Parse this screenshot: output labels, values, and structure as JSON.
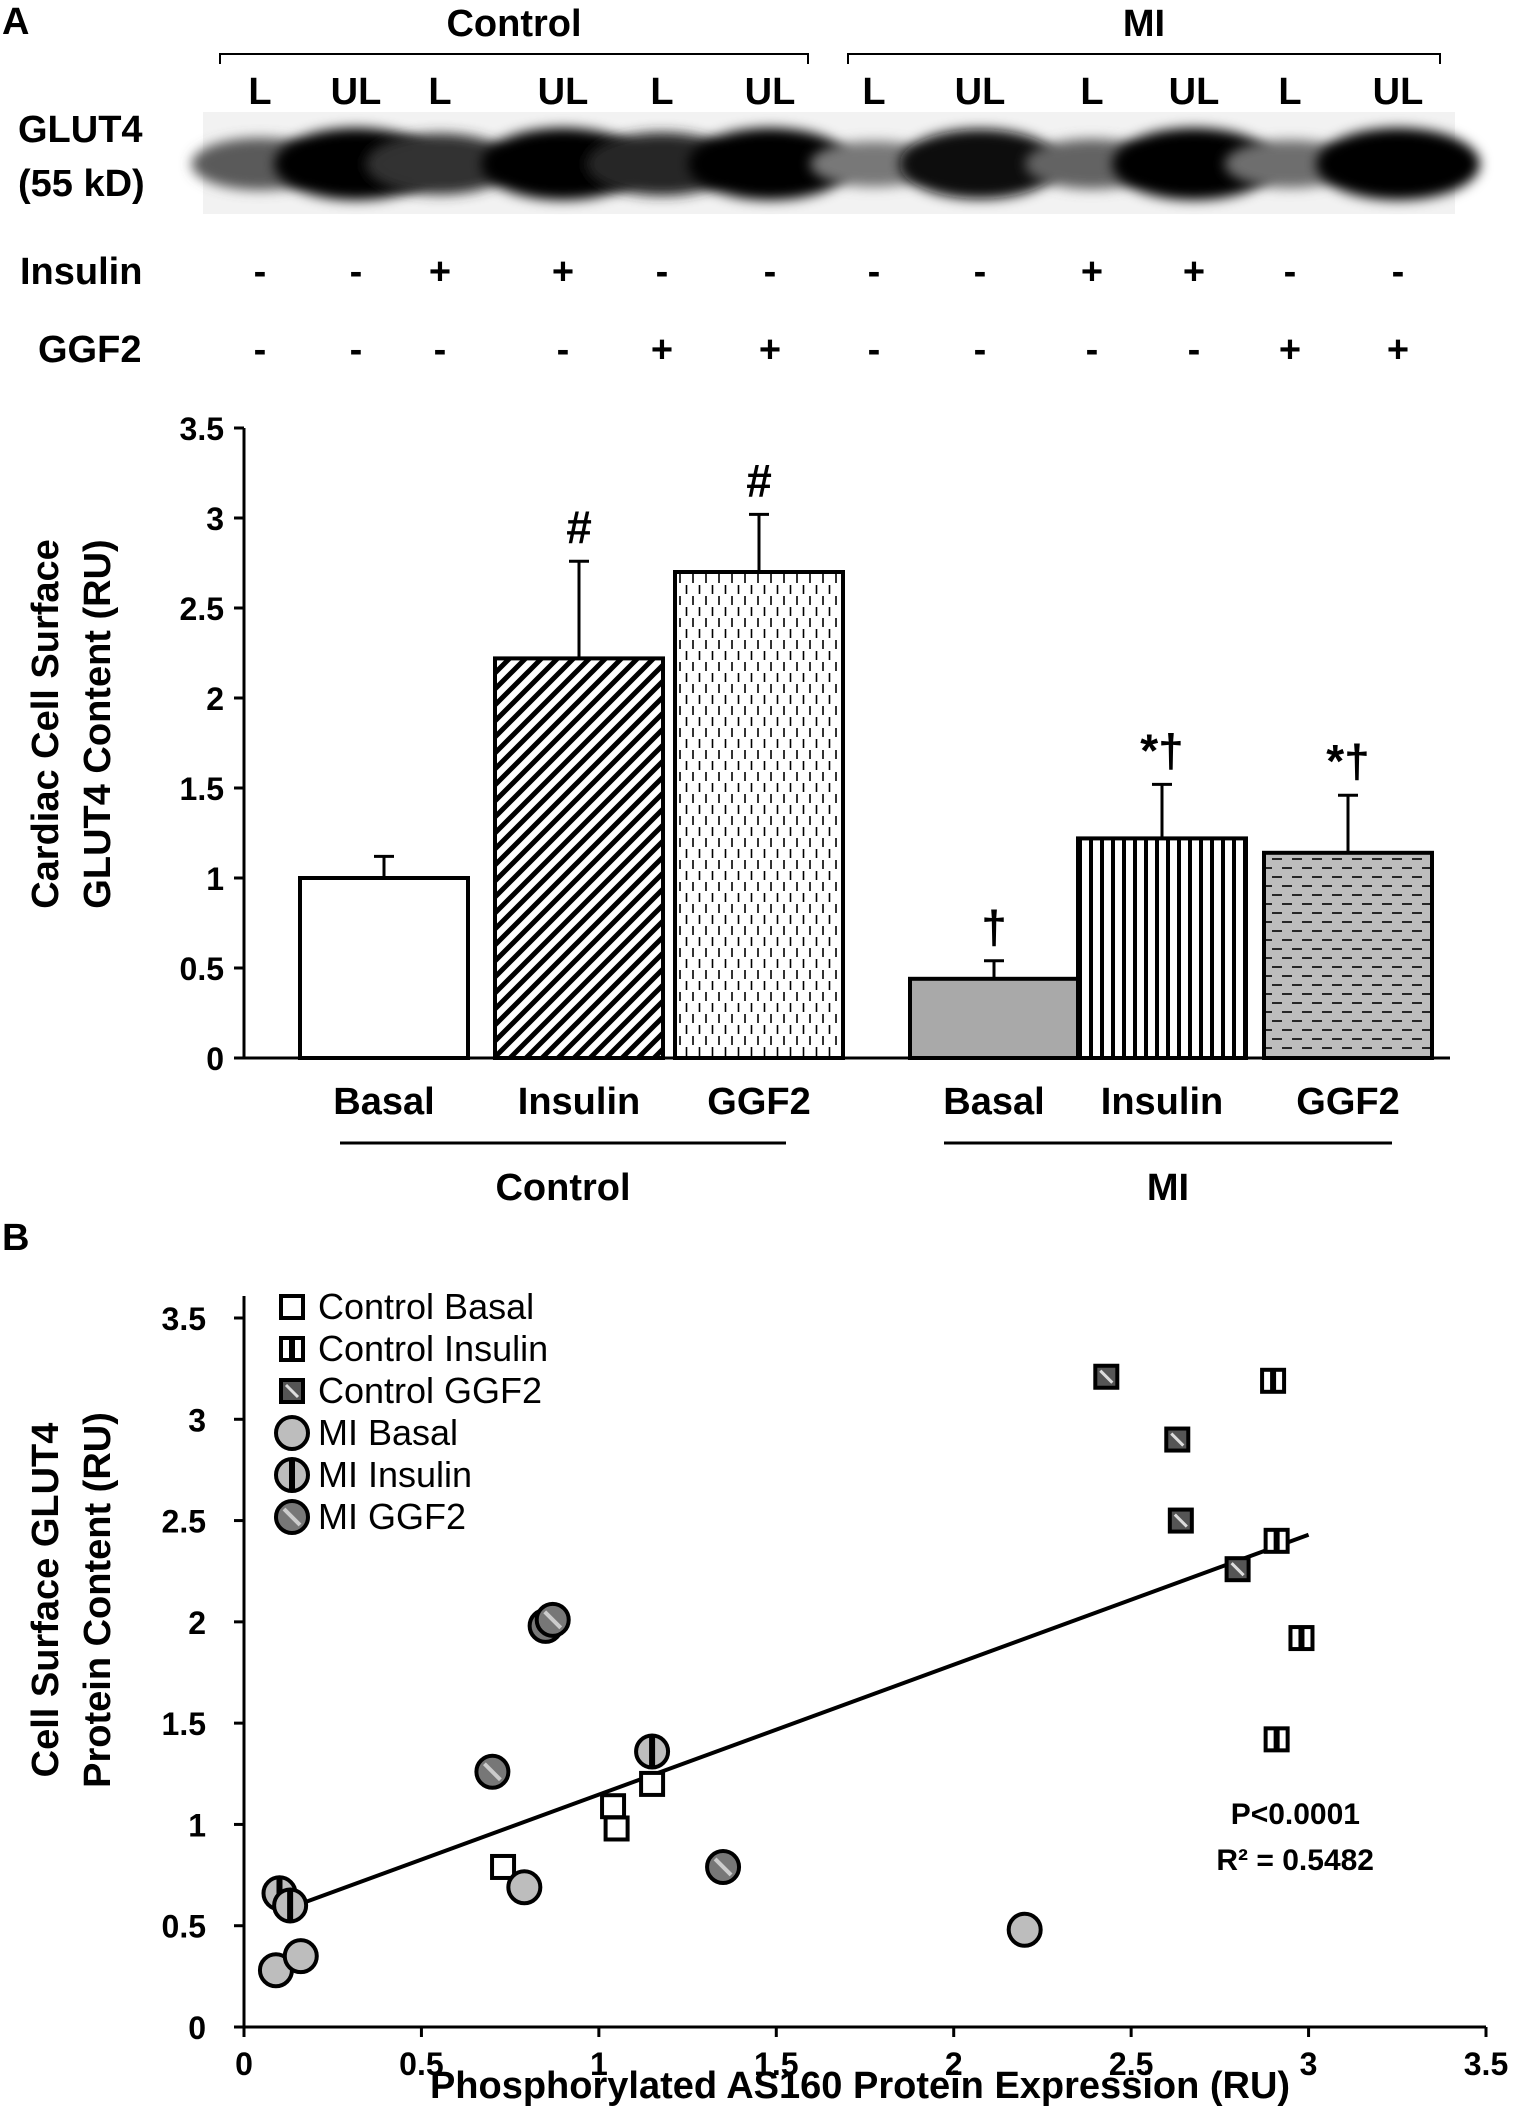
{
  "panel_a": {
    "label": "A",
    "blot": {
      "groups": [
        "Control",
        "MI"
      ],
      "lanes": [
        "L",
        "UL",
        "L",
        "UL",
        "L",
        "UL",
        "L",
        "UL",
        "L",
        "UL",
        "L",
        "UL"
      ],
      "band_label_1": "GLUT4",
      "band_label_2": "(55 kD)",
      "band_intensity": [
        0.55,
        1.0,
        0.75,
        1.0,
        0.8,
        1.0,
        0.4,
        0.95,
        0.5,
        1.0,
        0.45,
        1.0
      ],
      "treatments": [
        {
          "name": "Insulin",
          "signs": [
            "-",
            "-",
            "+",
            "+",
            "-",
            "-",
            "-",
            "-",
            "+",
            "+",
            "-",
            "-"
          ]
        },
        {
          "name": "GGF2",
          "signs": [
            "-",
            "-",
            "-",
            "-",
            "+",
            "+",
            "-",
            "-",
            "-",
            "-",
            "+",
            "+"
          ]
        }
      ]
    }
  },
  "panel_b": {
    "label": "B"
  },
  "colors": {
    "bar_white": "#ffffff",
    "bar_grey": "#a9a9a9",
    "dot_grey": "#bdbdbd",
    "ink": "#000000"
  },
  "chart_data": [
    {
      "type": "bar",
      "ylabel_line1": "Cardiac Cell Surface",
      "ylabel_line2": "GLUT4 Content (RU)",
      "ylim": [
        0,
        3.5
      ],
      "yticks": [
        0,
        0.5,
        1,
        1.5,
        2,
        2.5,
        3,
        3.5
      ],
      "ytick_labels": [
        "0",
        "0.5",
        "1",
        "1.5",
        "2",
        "2.5",
        "3",
        "3.5"
      ],
      "categories": [
        "Basal",
        "Insulin",
        "GGF2",
        "Basal",
        "Insulin",
        "GGF2"
      ],
      "groups": [
        {
          "name": "Control",
          "categories": [
            0,
            1,
            2
          ]
        },
        {
          "name": "MI",
          "categories": [
            3,
            4,
            5
          ]
        }
      ],
      "values": [
        1.0,
        2.22,
        2.7,
        0.44,
        1.22,
        1.14
      ],
      "errors": [
        0.12,
        0.54,
        0.32,
        0.1,
        0.3,
        0.32
      ],
      "patterns": [
        "white",
        "diagonal",
        "dashed-vertical",
        "grey",
        "vertical",
        "grey-dashed"
      ],
      "annotations": [
        "",
        "#",
        "#",
        "†",
        "*†",
        "*†"
      ]
    },
    {
      "type": "scatter",
      "xlabel": "Phosphorylated AS160 Protein Expression (RU)",
      "ylabel_line1": "Cell Surface GLUT4",
      "ylabel_line2": "Protein Content (RU)",
      "xlim": [
        0,
        3.5
      ],
      "ylim": [
        0,
        3.5
      ],
      "xticks": [
        0,
        0.5,
        1,
        1.5,
        2,
        2.5,
        3,
        3.5
      ],
      "xtick_labels": [
        "0",
        "0.5",
        "1",
        "1.5",
        "2",
        "2.5",
        "3",
        "3.5"
      ],
      "yticks": [
        0,
        0.5,
        1,
        1.5,
        2,
        2.5,
        3,
        3.5
      ],
      "ytick_labels": [
        "0",
        "0.5",
        "1",
        "1.5",
        "2",
        "2.5",
        "3",
        "3.5"
      ],
      "series": [
        {
          "name": "Control Basal",
          "marker": "square-open",
          "x": [
            0.73,
            1.04,
            1.05,
            1.15
          ],
          "y": [
            0.79,
            1.09,
            0.98,
            1.2
          ]
        },
        {
          "name": "Control Insulin",
          "marker": "square-bar",
          "x": [
            2.9,
            2.91,
            2.98,
            2.91
          ],
          "y": [
            3.19,
            2.4,
            1.92,
            1.42
          ]
        },
        {
          "name": "Control GGF2",
          "marker": "square-dark",
          "x": [
            2.43,
            2.63,
            2.64,
            2.8
          ],
          "y": [
            3.21,
            2.9,
            2.5,
            2.26
          ]
        },
        {
          "name": "MI Basal",
          "marker": "circle-grey",
          "x": [
            0.09,
            0.16,
            0.79,
            2.2
          ],
          "y": [
            0.28,
            0.35,
            0.69,
            0.48
          ]
        },
        {
          "name": "MI Insulin",
          "marker": "circle-bar",
          "x": [
            0.1,
            0.13,
            1.15
          ],
          "y": [
            0.66,
            0.6,
            1.36
          ]
        },
        {
          "name": "MI GGF2",
          "marker": "circle-dark",
          "x": [
            0.7,
            0.85,
            0.87,
            1.35
          ],
          "y": [
            1.26,
            1.98,
            2.01,
            0.79
          ]
        }
      ],
      "fit_line": {
        "x": [
          0.1,
          3.0
        ],
        "y": [
          0.57,
          2.43
        ]
      },
      "stat_p": "P<0.0001",
      "stat_r2": "R² = 0.5482"
    }
  ]
}
